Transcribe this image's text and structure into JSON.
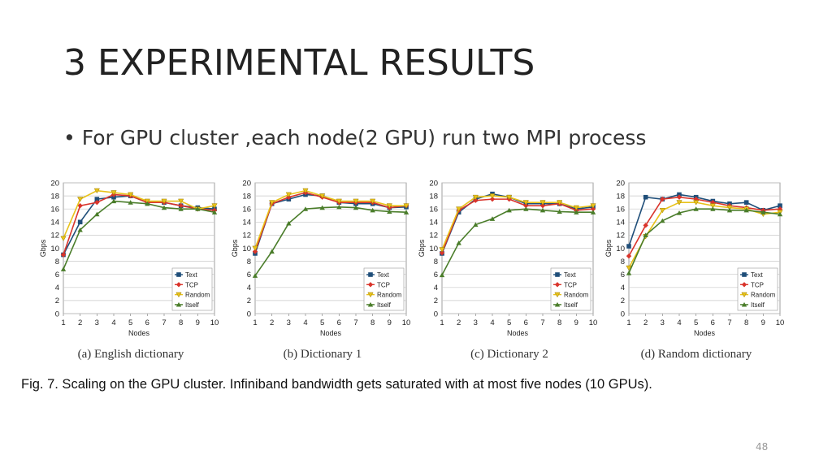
{
  "slide": {
    "title": "3 EXPERIMENTAL RESULTS",
    "bullet": "For GPU cluster ,each node(2 GPU) run two MPI process",
    "caption": "Fig. 7. Scaling on the GPU cluster. Infiniband bandwidth gets saturated with at most five nodes (10 GPUs).",
    "page_number": "48"
  },
  "series_colors": {
    "Text": "#1f4e79",
    "TCP": "#d9342b",
    "Random": "#e8c21a",
    "Itself": "#4a7d2a"
  },
  "chart_data": [
    {
      "type": "line",
      "subcaption": "(a) English dictionary",
      "xlabel": "Nodes",
      "ylabel": "Gbps",
      "x": [
        1,
        2,
        3,
        4,
        5,
        6,
        7,
        8,
        9,
        10
      ],
      "xticks": [
        "1",
        "2",
        "3",
        "4",
        "5",
        "6",
        "7",
        "8",
        "9",
        "10"
      ],
      "yticks": [
        "0",
        "2",
        "4",
        "6",
        "8",
        "10",
        "12",
        "14",
        "16",
        "18",
        "20"
      ],
      "xlim": [
        1,
        10
      ],
      "ylim": [
        0,
        20
      ],
      "grid": true,
      "legend": "bottom-right",
      "series": [
        {
          "name": "Text",
          "values": [
            9,
            14,
            17.5,
            17.8,
            18,
            17,
            17,
            16.5,
            16.2,
            16
          ]
        },
        {
          "name": "TCP",
          "values": [
            9,
            16.5,
            17,
            18.2,
            18,
            17,
            17,
            16.5,
            16,
            15.8
          ]
        },
        {
          "name": "Random",
          "values": [
            11.5,
            17.5,
            18.8,
            18.5,
            18.2,
            17.2,
            17.2,
            17.2,
            16,
            16.5
          ]
        },
        {
          "name": "Itself",
          "values": [
            6.8,
            12.8,
            15.2,
            17.2,
            17,
            16.8,
            16.2,
            16,
            16,
            15.5
          ]
        }
      ]
    },
    {
      "type": "line",
      "subcaption": "(b) Dictionary 1",
      "xlabel": "Nodes",
      "ylabel": "Gbps",
      "x": [
        1,
        2,
        3,
        4,
        5,
        6,
        7,
        8,
        9,
        10
      ],
      "xticks": [
        "1",
        "2",
        "3",
        "4",
        "5",
        "6",
        "7",
        "8",
        "9",
        "10"
      ],
      "yticks": [
        "0",
        "2",
        "4",
        "6",
        "8",
        "10",
        "12",
        "14",
        "16",
        "18",
        "20"
      ],
      "xlim": [
        1,
        10
      ],
      "ylim": [
        0,
        20
      ],
      "grid": true,
      "legend": "bottom-right",
      "series": [
        {
          "name": "Text",
          "values": [
            9.2,
            16.8,
            17.5,
            18.2,
            18,
            17,
            16.8,
            16.8,
            16.2,
            16.3
          ]
        },
        {
          "name": "TCP",
          "values": [
            9.5,
            16.8,
            17.8,
            18.5,
            17.8,
            17,
            17,
            17,
            16.2,
            16.5
          ]
        },
        {
          "name": "Random",
          "values": [
            10,
            17,
            18.2,
            18.8,
            18,
            17.2,
            17.2,
            17.2,
            16.5,
            16.5
          ]
        },
        {
          "name": "Itself",
          "values": [
            5.8,
            9.5,
            13.8,
            16,
            16.2,
            16.3,
            16.2,
            15.8,
            15.6,
            15.5
          ]
        }
      ]
    },
    {
      "type": "line",
      "subcaption": "(c) Dictionary 2",
      "xlabel": "Nodes",
      "ylabel": "Gbps",
      "x": [
        1,
        2,
        3,
        4,
        5,
        6,
        7,
        8,
        9,
        10
      ],
      "xticks": [
        "1",
        "2",
        "3",
        "4",
        "5",
        "6",
        "7",
        "8",
        "9",
        "10"
      ],
      "yticks": [
        "0",
        "2",
        "4",
        "6",
        "8",
        "10",
        "12",
        "14",
        "16",
        "18",
        "20"
      ],
      "xlim": [
        1,
        10
      ],
      "ylim": [
        0,
        20
      ],
      "grid": true,
      "legend": "bottom-right",
      "series": [
        {
          "name": "Text",
          "values": [
            9.2,
            15.5,
            17.5,
            18.3,
            17.8,
            16.8,
            16.8,
            16.8,
            16,
            16.3
          ]
        },
        {
          "name": "TCP",
          "values": [
            9.3,
            15.8,
            17.3,
            17.5,
            17.5,
            16.5,
            16.5,
            16.8,
            15.8,
            16
          ]
        },
        {
          "name": "Random",
          "values": [
            9.8,
            16,
            17.8,
            18,
            17.8,
            17,
            17,
            17,
            16.2,
            16.5
          ]
        },
        {
          "name": "Itself",
          "values": [
            5.9,
            10.8,
            13.6,
            14.5,
            15.8,
            16,
            15.8,
            15.6,
            15.5,
            15.5
          ]
        }
      ]
    },
    {
      "type": "line",
      "subcaption": "(d) Random dictionary",
      "xlabel": "Nodes",
      "ylabel": "Gbps",
      "x": [
        1,
        2,
        3,
        4,
        5,
        6,
        7,
        8,
        9,
        10
      ],
      "xticks": [
        "1",
        "2",
        "3",
        "4",
        "5",
        "6",
        "7",
        "8",
        "9",
        "10"
      ],
      "yticks": [
        "0",
        "2",
        "4",
        "6",
        "8",
        "10",
        "12",
        "14",
        "16",
        "18",
        "20"
      ],
      "xlim": [
        1,
        10
      ],
      "ylim": [
        0,
        20
      ],
      "grid": true,
      "legend": "bottom-right",
      "series": [
        {
          "name": "Text",
          "values": [
            10.3,
            17.8,
            17.5,
            18.2,
            17.8,
            17.2,
            16.8,
            17,
            15.8,
            16.5
          ]
        },
        {
          "name": "TCP",
          "values": [
            8.8,
            13.5,
            17.5,
            17.8,
            17.5,
            17,
            16.5,
            16.2,
            15.8,
            16
          ]
        },
        {
          "name": "Random",
          "values": [
            7,
            11.8,
            15.8,
            17,
            17,
            16.5,
            16.2,
            16,
            15.2,
            15.5
          ]
        },
        {
          "name": "Itself",
          "values": [
            6.2,
            12,
            14.2,
            15.4,
            16,
            16,
            15.8,
            15.8,
            15.5,
            15.2
          ]
        }
      ]
    }
  ]
}
